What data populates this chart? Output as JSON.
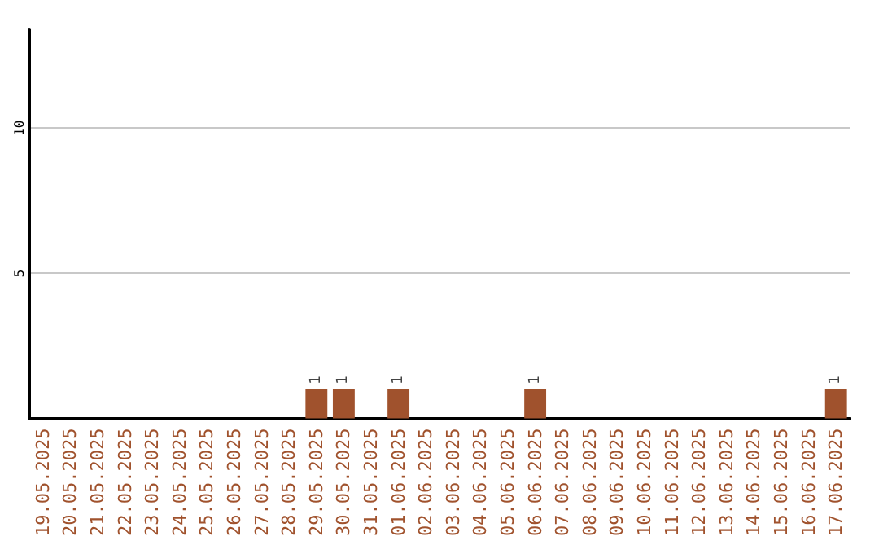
{
  "chart_data": {
    "type": "bar",
    "categories": [
      "19.05.2025",
      "20.05.2025",
      "21.05.2025",
      "22.05.2025",
      "23.05.2025",
      "24.05.2025",
      "25.05.2025",
      "26.05.2025",
      "27.05.2025",
      "28.05.2025",
      "29.05.2025",
      "30.05.2025",
      "31.05.2025",
      "01.06.2025",
      "02.06.2025",
      "03.06.2025",
      "04.06.2025",
      "05.06.2025",
      "06.06.2025",
      "07.06.2025",
      "08.06.2025",
      "09.06.2025",
      "10.06.2025",
      "11.06.2025",
      "12.06.2025",
      "13.06.2025",
      "14.06.2025",
      "15.06.2025",
      "16.06.2025",
      "17.06.2025"
    ],
    "values": [
      null,
      null,
      null,
      null,
      null,
      null,
      null,
      null,
      null,
      null,
      1,
      1,
      null,
      1,
      null,
      null,
      null,
      null,
      1,
      null,
      null,
      null,
      null,
      null,
      null,
      null,
      null,
      null,
      null,
      1
    ],
    "color": "#a0522d",
    "ylim": [
      0,
      13.4
    ],
    "yticks": [
      5,
      10
    ],
    "grid": "y",
    "data_labels": true
  }
}
